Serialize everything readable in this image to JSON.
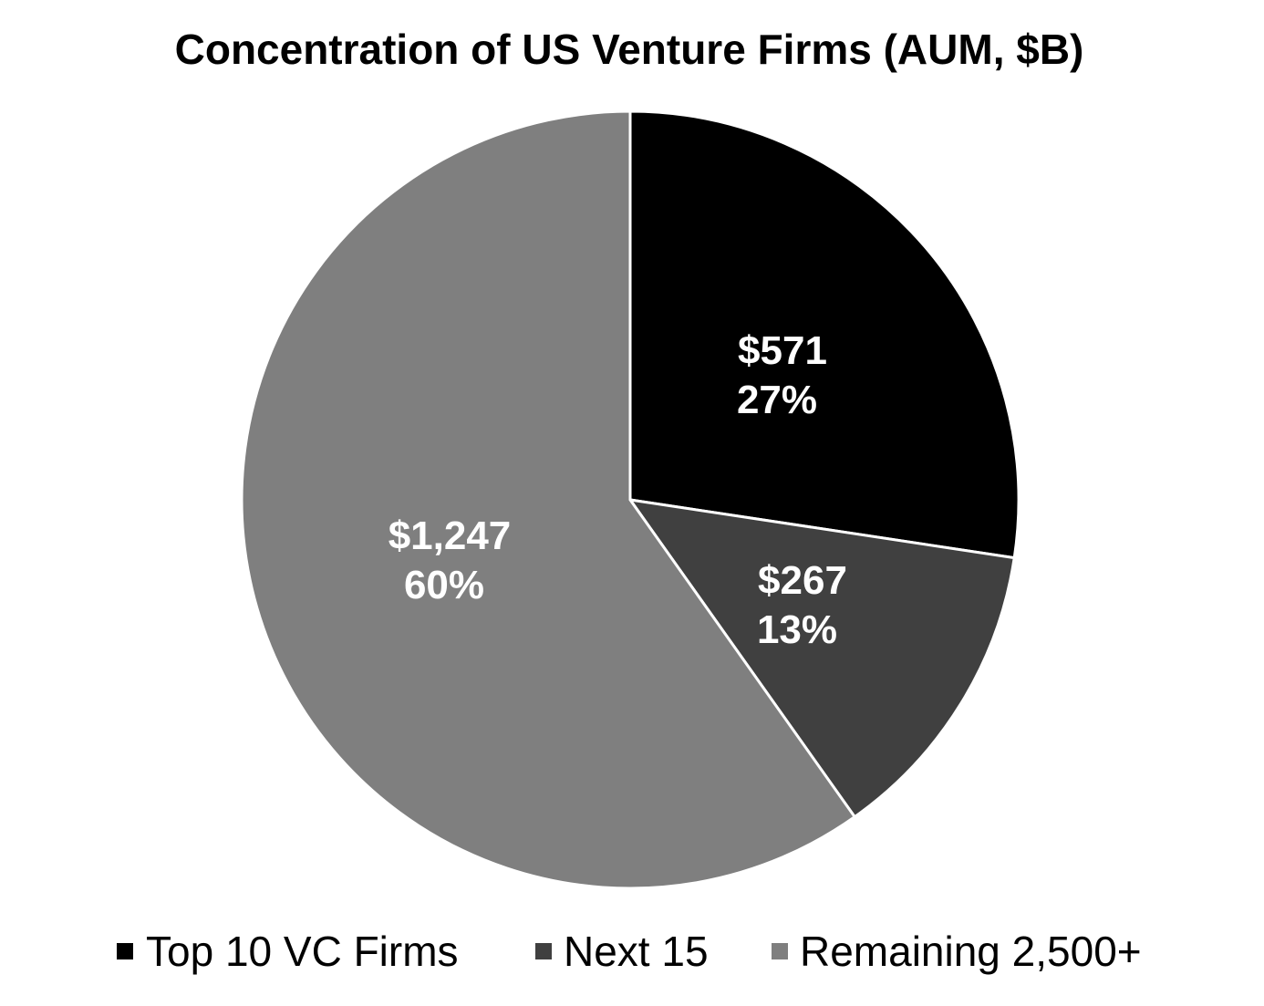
{
  "chart_data": {
    "type": "pie",
    "title": "Concentration of US Venture Firms (AUM, $B)",
    "legend_position": "bottom",
    "slices": [
      {
        "name": "Top 10 VC Firms",
        "value": 571,
        "value_label": "$571",
        "percent_label": "27%",
        "color": "#000000"
      },
      {
        "name": "Next 15",
        "value": 267,
        "value_label": "$267",
        "percent_label": "13%",
        "color": "#404040"
      },
      {
        "name": "Remaining 2,500+",
        "value": 1247,
        "value_label": "$1,247",
        "percent_label": "60%",
        "color": "#7f7f7f"
      }
    ]
  }
}
